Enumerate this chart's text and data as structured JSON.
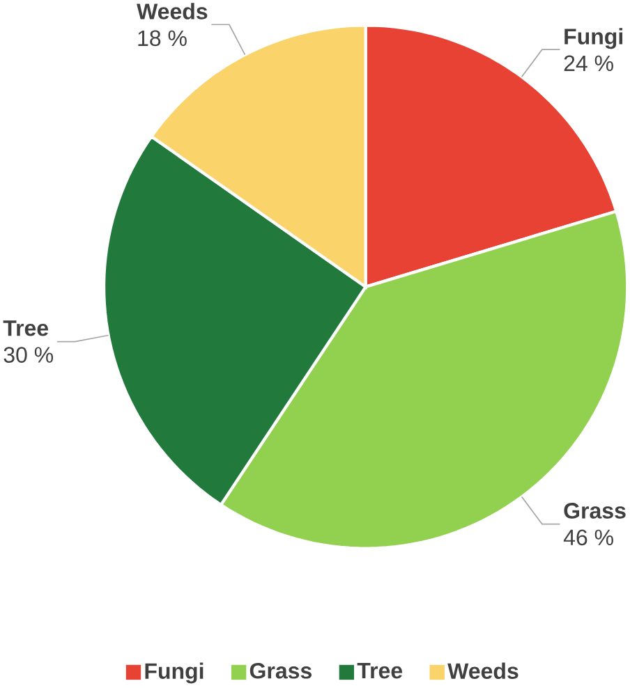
{
  "chart_data": {
    "type": "pie",
    "categories": [
      "Fungi",
      "Grass",
      "Tree",
      "Weeds"
    ],
    "values": [
      24,
      46,
      30,
      18
    ],
    "value_labels": [
      "24 %",
      "46 %",
      "30 %",
      "18 %"
    ],
    "colors": [
      "#e84234",
      "#92d050",
      "#217a3c",
      "#fad36b"
    ],
    "legend": "bottom"
  }
}
